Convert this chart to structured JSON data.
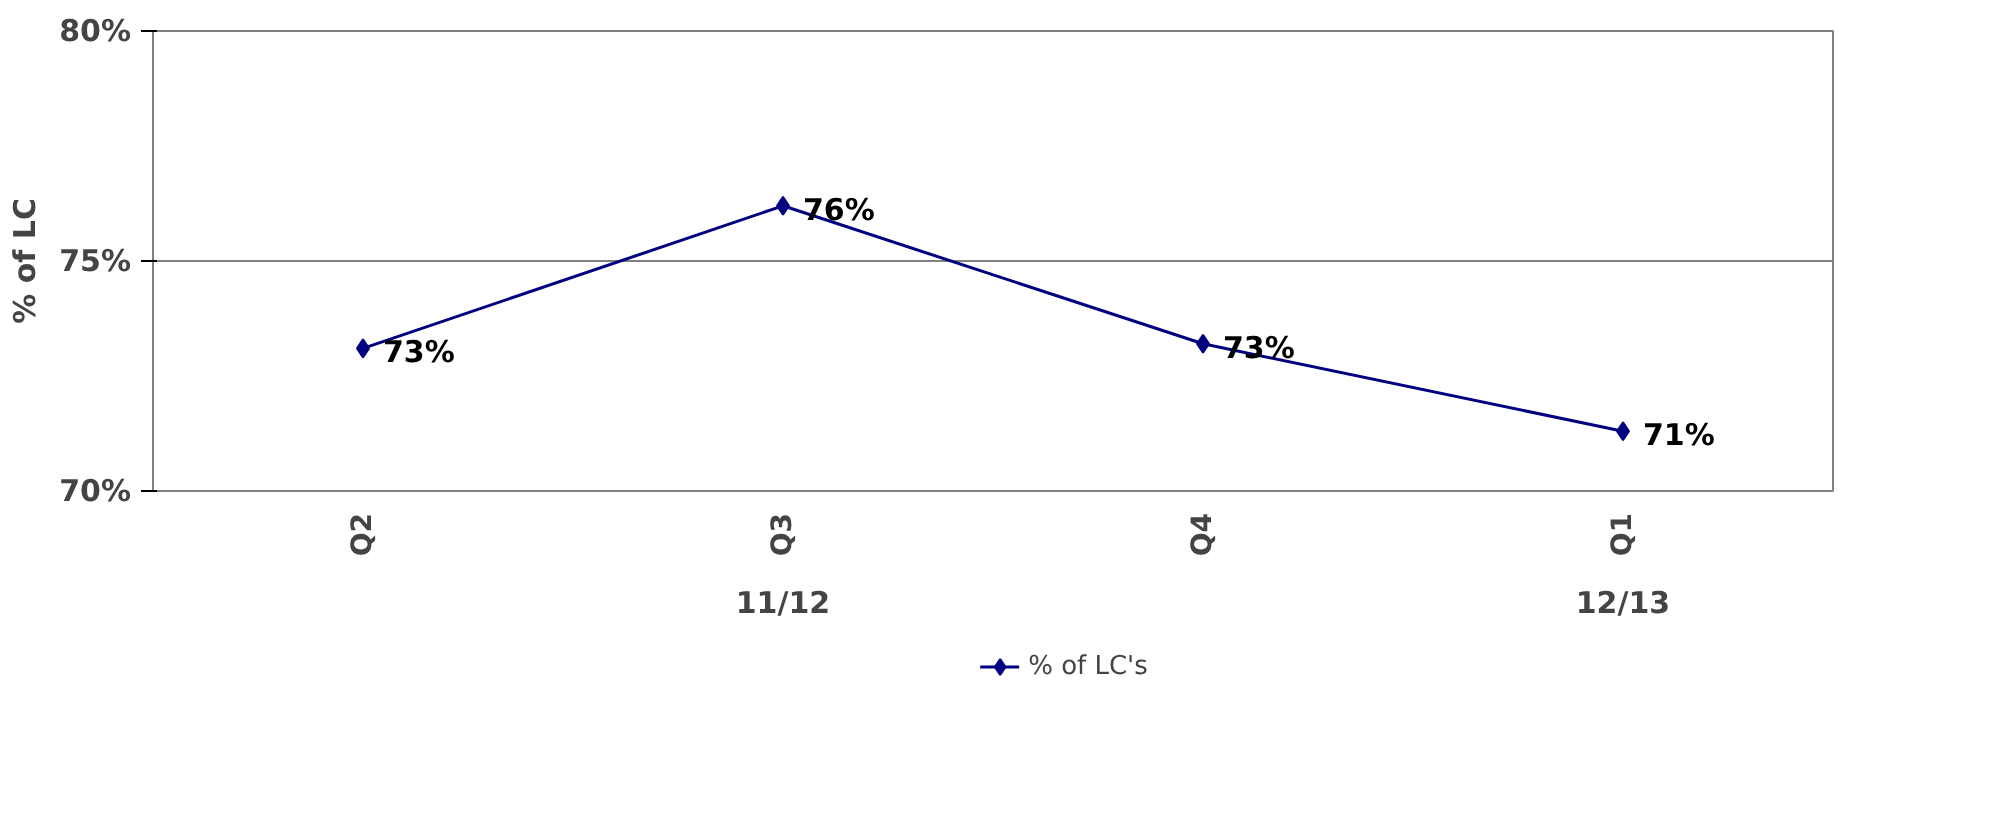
{
  "chart_data": {
    "type": "line",
    "ylabel": "% of LC",
    "categories": [
      "Q2",
      "Q3",
      "Q4",
      "Q1"
    ],
    "series": [
      {
        "name": "% of LC's",
        "color": "#000080",
        "values": [
          73.1,
          76.2,
          73.2,
          71.3
        ],
        "value_labels": [
          "73%",
          "76%",
          "73%",
          "71%"
        ]
      }
    ],
    "ylim": [
      70,
      80
    ],
    "yticks": [
      {
        "value": 70,
        "label": "70%"
      },
      {
        "value": 75,
        "label": "75%"
      },
      {
        "value": 80,
        "label": "80%"
      }
    ],
    "annotations": [
      "11/12",
      "12/13"
    ],
    "grid": "y",
    "legend": "bottom",
    "marker": "diamond",
    "line_style": "solid"
  }
}
